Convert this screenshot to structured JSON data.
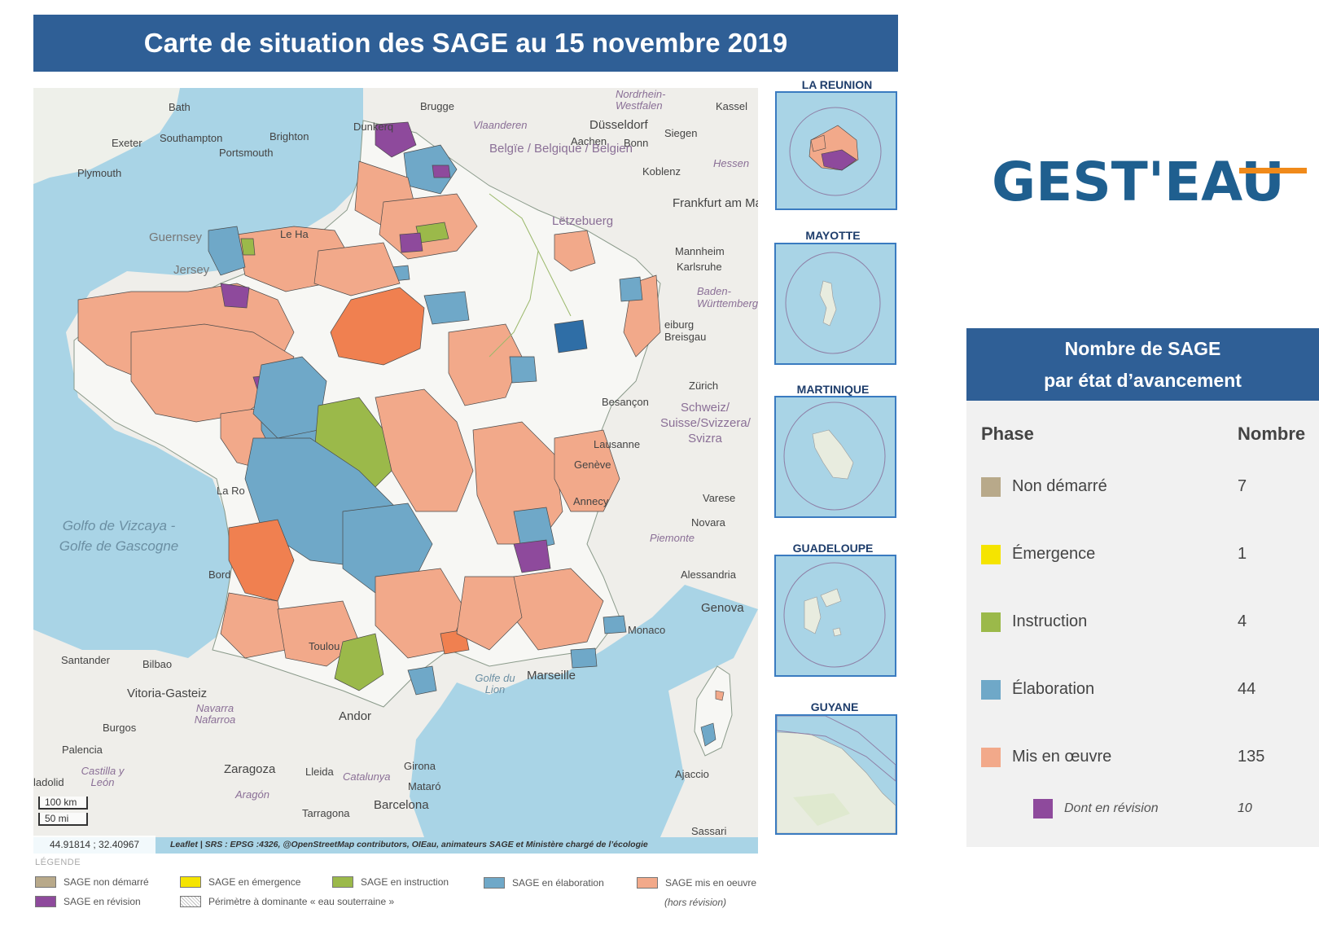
{
  "title": "Carte de situation des SAGE au 15 novembre 2019",
  "colors": {
    "non_demarre": "#b8a98a",
    "emergence": "#f5e400",
    "instruction": "#9bb94a",
    "elaboration": "#6fa8c8",
    "mis_en_oeuvre": "#f2a98a",
    "revision": "#8e4a9c",
    "header_blue": "#2f5f96",
    "logo_blue": "#1f5f8f",
    "logo_orange": "#f08a1a"
  },
  "map": {
    "labels": {
      "bath": "Bath",
      "brugge": "Brugge",
      "nordrhein": "Nordrhein-",
      "westfalen": "Westfalen",
      "kassel": "Kassel",
      "exeter": "Exeter",
      "southampton": "Southampton",
      "brighton": "Brighton",
      "portsmouth": "Portsmouth",
      "dunkerque": "Dunkerq",
      "vlaanderen": "Vlaanderen",
      "dusseldorf": "Düsseldorf",
      "aachen": "Aachen",
      "bonn": "Bonn",
      "siegen": "Siegen",
      "plymouth": "Plymouth",
      "belgie": "Belgïe / Belgique / Belgien",
      "koblenz": "Koblenz",
      "hessen": "Hessen",
      "frankfurt": "Frankfurt am Main",
      "guernsey": "Guernsey",
      "le_havre": "Le Ha",
      "letzebuerg": "Lëtzebuerg",
      "mannheim": "Mannheim",
      "jersey": "Jersey",
      "karlsruhe": "Karlsruhe",
      "baden": "Baden-Württemberg",
      "freiburg": "eiburg Breisgau",
      "zurich": "Zürich",
      "schweiz": "Schweiz/ Suisse/Svizzera/ Svizra",
      "besancon": "Besançon",
      "lausanne": "Lausanne",
      "geneve": "Genève",
      "annecy": "Annecy",
      "varese": "Varese",
      "la_rochelle": "La Ro",
      "golfo": "Golfo de Vizcaya - Golfe de Gascogne",
      "novara": "Novara",
      "piemonte": "Piemonte",
      "bordeaux": "Bord",
      "alessandria": "Alessandria",
      "genova": "Genova",
      "monaco": "Monaco",
      "toulouse": "Toulou",
      "santander": "Santander",
      "bilbao": "Bilbao",
      "marseille": "Marseille",
      "golfe_lion": "Golfe du Lion",
      "vitoria": "Vitoria-Gasteiz",
      "burgos": "Burgos",
      "navarra": "Navarra Nafarroa",
      "andorra": "Andor",
      "palencia": "Palencia",
      "castilla": "Castilla y León",
      "zaragoza": "Zaragoza",
      "lleida": "Lleida",
      "catalunya": "Catalunya",
      "girona": "Girona",
      "mataro": "Mataró",
      "ajaccio": "Ajaccio",
      "aragon": "Aragón",
      "tarragona": "Tarragona",
      "barcelona": "Barcelona",
      "sassari": "Sassari",
      "valladolid": "ladolid"
    },
    "scale_km": "100 km",
    "scale_mi": "50 mi",
    "coords": "44.91814 ; 32.40967",
    "attribution": "Leaflet | SRS : EPSG :4326, @OpenStreetMap contributors, OIEau, animateurs SAGE et Ministère chargé de l’écologie"
  },
  "legend": {
    "heading": "LÉGENDE",
    "items": [
      {
        "label": "SAGE non démarré"
      },
      {
        "label": "SAGE en émergence"
      },
      {
        "label": "SAGE en instruction"
      },
      {
        "label": "SAGE en élaboration"
      },
      {
        "label": "SAGE mis en oeuvre"
      },
      {
        "label": "SAGE en révision"
      },
      {
        "label": "Périmètre à dominante « eau souterraine »"
      }
    ],
    "note": "(hors révision)"
  },
  "insets": [
    {
      "title": "LA REUNION"
    },
    {
      "title": "MAYOTTE"
    },
    {
      "title": "MARTINIQUE"
    },
    {
      "title": "GUADELOUPE"
    },
    {
      "title": "GUYANE"
    }
  ],
  "logo": "GEST'EAU",
  "panel": {
    "title_line1": "Nombre de SAGE",
    "title_line2": "par état d’avancement",
    "col_phase": "Phase",
    "col_count": "Nombre",
    "rows": [
      {
        "phase": "Non démarré",
        "count": "7"
      },
      {
        "phase": "Émergence",
        "count": "1"
      },
      {
        "phase": "Instruction",
        "count": "4"
      },
      {
        "phase": "Élaboration",
        "count": "44"
      },
      {
        "phase": "Mis en œuvre",
        "count": "135"
      },
      {
        "phase": "Dont en révision",
        "count": "10"
      }
    ]
  }
}
